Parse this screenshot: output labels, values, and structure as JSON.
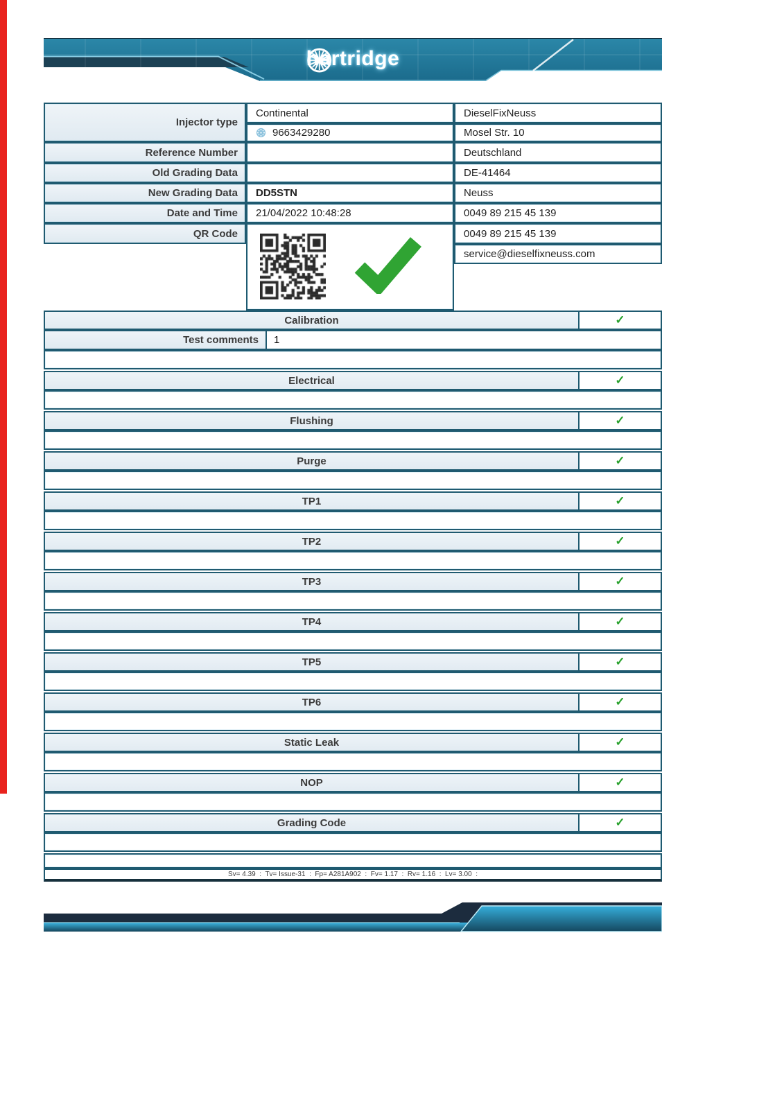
{
  "brand": {
    "name": "hartridge"
  },
  "colors": {
    "banner_teal": "#1f7495",
    "banner_dark": "#152f3e",
    "table_border": "#1f5a70",
    "label_bg": "#e8eff4",
    "check_green": "#2fa32e",
    "left_bar_red": "#e9231e",
    "bottom_blue": "#2fa9d6"
  },
  "info": {
    "labels": {
      "injector_type": "Injector type",
      "reference_number": "Reference Number",
      "old_grading": "Old Grading Data",
      "new_grading": "New Grading Data",
      "date_time": "Date and Time",
      "qr_code": "QR Code"
    },
    "values": {
      "make": "Continental",
      "part_number": "9663429280",
      "reference_number": "",
      "old_grading": "",
      "new_grading": "DD5STN",
      "date_time": "21/04/2022 10:48:28"
    },
    "workshop": {
      "name": "DieselFixNeuss",
      "street": "Mosel Str. 10",
      "country": "Deutschland",
      "postal_code": "DE-41464",
      "city": "Neuss",
      "phone1": "0049 89 215 45 139",
      "phone2": "0049 89 215 45 139",
      "email": "service@dieselfixneuss.com"
    }
  },
  "tests": {
    "calibration": {
      "label": "Calibration",
      "check": "✓"
    },
    "comments": {
      "label": "Test comments",
      "value": "1"
    },
    "sections": [
      {
        "label": "Electrical",
        "check": "✓"
      },
      {
        "label": "Flushing",
        "check": "✓"
      },
      {
        "label": "Purge",
        "check": "✓"
      },
      {
        "label": "TP1",
        "check": "✓"
      },
      {
        "label": "TP2",
        "check": "✓"
      },
      {
        "label": "TP3",
        "check": "✓"
      },
      {
        "label": "TP4",
        "check": "✓"
      },
      {
        "label": "TP5",
        "check": "✓"
      },
      {
        "label": "TP6",
        "check": "✓"
      },
      {
        "label": "Static Leak",
        "check": "✓"
      },
      {
        "label": "NOP",
        "check": "✓"
      },
      {
        "label": "Grading Code",
        "check": "✓"
      }
    ]
  },
  "footer": {
    "version_line": "Sv= 4.39  :  Tv= Issue-31  :  Fp= A281A902  :  Fv= 1.17  :  Rv= 1.16  :  Lv= 3.00  :"
  }
}
